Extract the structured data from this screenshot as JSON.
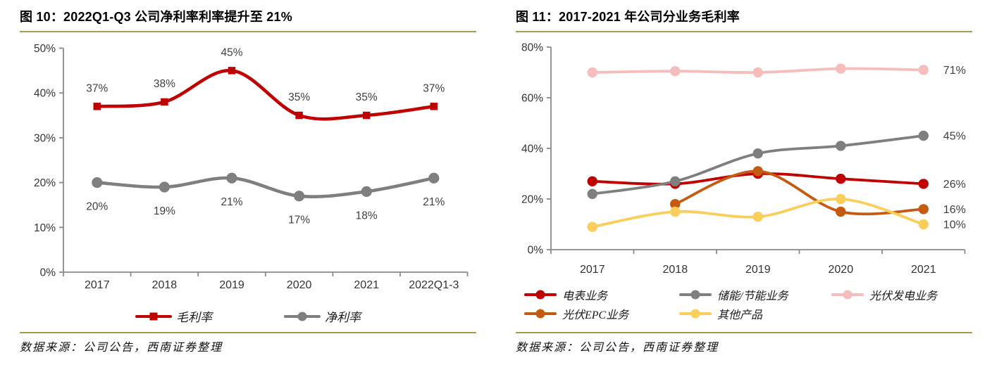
{
  "source_note": "数据来源：公司公告，西南证券整理",
  "colors": {
    "gold_rule": "#B0954F",
    "axis": "#8a8a8a",
    "tick_label": "#333333",
    "data_label": "#3f3f3f",
    "red": "#C00000",
    "gray": "#7F7F7F",
    "pink": "#F5BEBD",
    "orange": "#C55A11",
    "yellow": "#FBCE5C"
  },
  "chart_data": [
    {
      "type": "line",
      "title": "图 10：2022Q1-Q3 公司净利率利率提升至 21%",
      "categories": [
        "2017",
        "2018",
        "2019",
        "2020",
        "2021",
        "2022Q1-3"
      ],
      "series": [
        {
          "name": "毛利率",
          "color": "#C00000",
          "marker": "square",
          "values": [
            37,
            38,
            45,
            35,
            35,
            37
          ],
          "point_labels": [
            "37%",
            "38%",
            "45%",
            "35%",
            "35%",
            "37%"
          ],
          "label_position": "above"
        },
        {
          "name": "净利率",
          "color": "#7F7F7F",
          "marker": "circle",
          "values": [
            20,
            19,
            21,
            17,
            18,
            21
          ],
          "point_labels": [
            "20%",
            "19%",
            "21%",
            "17%",
            "18%",
            "21%"
          ],
          "label_position": "below"
        }
      ],
      "ylim": [
        0,
        50
      ],
      "ytick_step": 10,
      "ytick_suffix": "%",
      "grid": false,
      "legend_position": "bottom"
    },
    {
      "type": "line",
      "title": "图 11：2017-2021 年公司分业务毛利率",
      "categories": [
        "2017",
        "2018",
        "2019",
        "2020",
        "2021"
      ],
      "series": [
        {
          "name": "电表业务",
          "color": "#C00000",
          "marker": "circle",
          "values": [
            27,
            26,
            30,
            28,
            26
          ],
          "end_label": "26%"
        },
        {
          "name": "储能/节能业务",
          "color": "#7F7F7F",
          "marker": "circle",
          "values": [
            22,
            27,
            38,
            41,
            45
          ],
          "end_label": "45%"
        },
        {
          "name": "光伏发电业务",
          "color": "#F5BEBD",
          "marker": "circle",
          "values": [
            70,
            70.5,
            70,
            71.5,
            71
          ],
          "end_label": "71%"
        },
        {
          "name": "光伏EPC业务",
          "color": "#C55A11",
          "marker": "circle",
          "values": [
            null,
            18,
            31,
            15,
            16
          ],
          "end_label": "16%"
        },
        {
          "name": "其他产品",
          "color": "#FBCE5C",
          "marker": "circle",
          "values": [
            9,
            15,
            13,
            20,
            10
          ],
          "end_label": "10%"
        }
      ],
      "ylim": [
        0,
        80
      ],
      "ytick_step": 20,
      "ytick_suffix": "%",
      "grid": false,
      "legend_position": "bottom"
    }
  ]
}
